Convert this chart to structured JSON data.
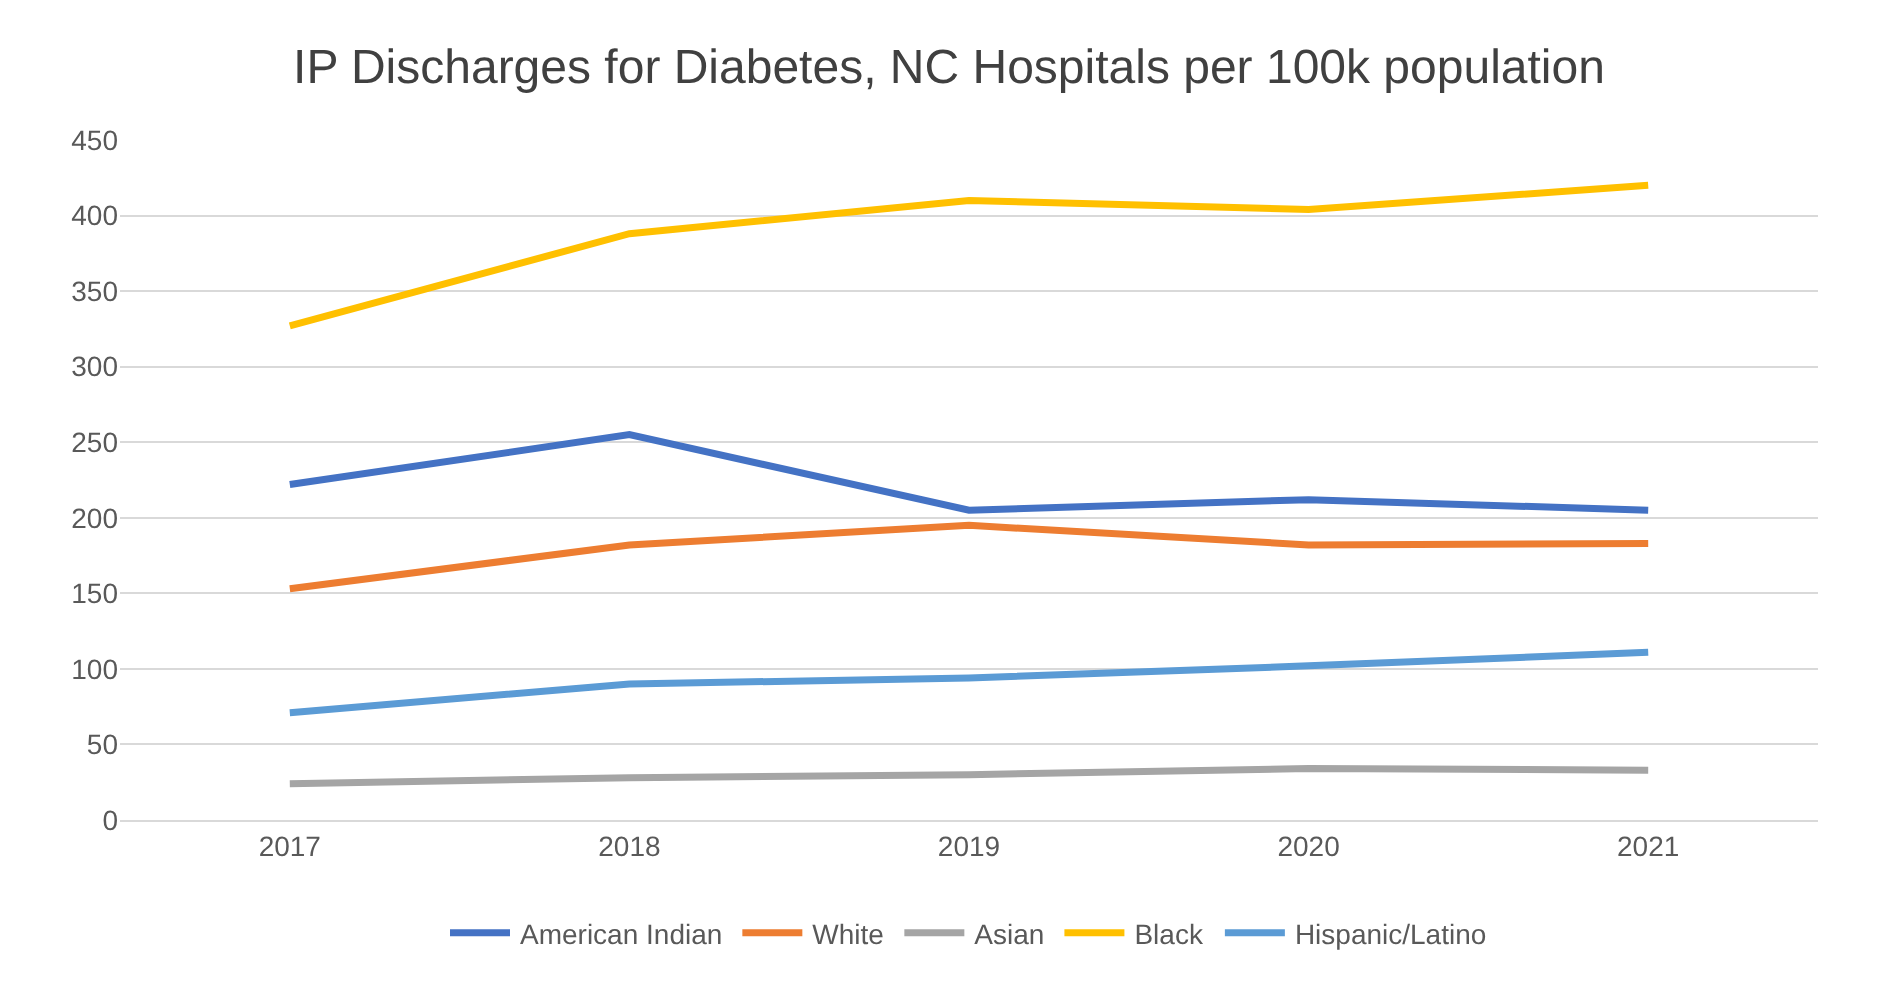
{
  "chart_data": {
    "type": "line",
    "title": "IP Discharges for Diabetes, NC Hospitals per 100k population",
    "categories": [
      "2017",
      "2018",
      "2019",
      "2020",
      "2021"
    ],
    "series": [
      {
        "name": "American Indian",
        "color": "#4472c4",
        "values": [
          222,
          255,
          205,
          212,
          205
        ]
      },
      {
        "name": "White",
        "color": "#ed7d31",
        "values": [
          153,
          182,
          195,
          182,
          183
        ]
      },
      {
        "name": "Asian",
        "color": "#a5a5a5",
        "values": [
          24,
          28,
          30,
          34,
          33
        ]
      },
      {
        "name": "Black",
        "color": "#ffc000",
        "values": [
          327,
          388,
          410,
          404,
          420
        ]
      },
      {
        "name": "Hispanic/Latino",
        "color": "#5b9bd5",
        "values": [
          71,
          90,
          94,
          102,
          111
        ]
      }
    ],
    "ylim": [
      0,
      450
    ],
    "yticks": [
      0,
      50,
      100,
      150,
      200,
      250,
      300,
      350,
      400,
      450
    ],
    "grid": "y",
    "legend": "bottom",
    "marker": "none",
    "line_style": "solid"
  }
}
